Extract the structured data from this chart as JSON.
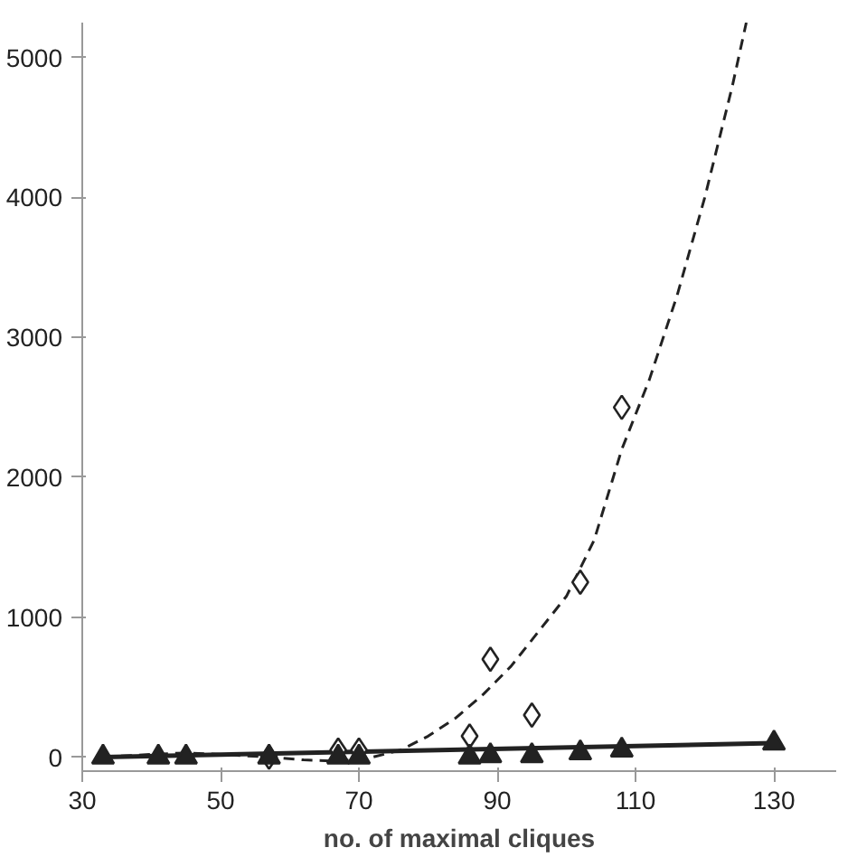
{
  "chart_data": {
    "type": "scatter",
    "xlabel": "no. of maximal cliques",
    "xlim": [
      30,
      139
    ],
    "ylim": [
      -100,
      5250
    ],
    "xticks": [
      30,
      50,
      70,
      90,
      110,
      130
    ],
    "yticks": [
      0,
      1000,
      2000,
      3000,
      4000,
      5000
    ],
    "grid": false,
    "series": [
      {
        "type": "line",
        "line_style": "dashed",
        "marker": "none",
        "color": "#222222",
        "x": [
          33,
          40,
          45,
          50,
          57,
          62,
          67,
          72,
          76,
          80,
          84,
          88,
          92,
          96,
          100,
          104,
          108,
          112,
          116,
          120,
          124,
          126
        ],
        "values": [
          0,
          20,
          30,
          20,
          0,
          -20,
          -30,
          0,
          50,
          150,
          280,
          450,
          650,
          900,
          1150,
          1550,
          2200,
          2700,
          3300,
          4000,
          4800,
          5250
        ]
      },
      {
        "type": "line",
        "line_style": "solid",
        "marker": "none",
        "color": "#222222",
        "x": [
          33,
          130
        ],
        "values": [
          0,
          100
        ]
      },
      {
        "marker": "diamond",
        "color": "#222222",
        "x": [
          57,
          67,
          70,
          86,
          89,
          95,
          102,
          108
        ],
        "values": [
          0,
          50,
          50,
          150,
          700,
          300,
          1250,
          2500
        ]
      },
      {
        "marker": "triangle",
        "color": "#222222",
        "x": [
          33,
          41,
          45,
          57,
          67,
          70,
          86,
          89,
          95,
          102,
          108,
          130
        ],
        "values": [
          0,
          0,
          0,
          0,
          0,
          0,
          0,
          10,
          10,
          30,
          50,
          100
        ]
      }
    ]
  }
}
